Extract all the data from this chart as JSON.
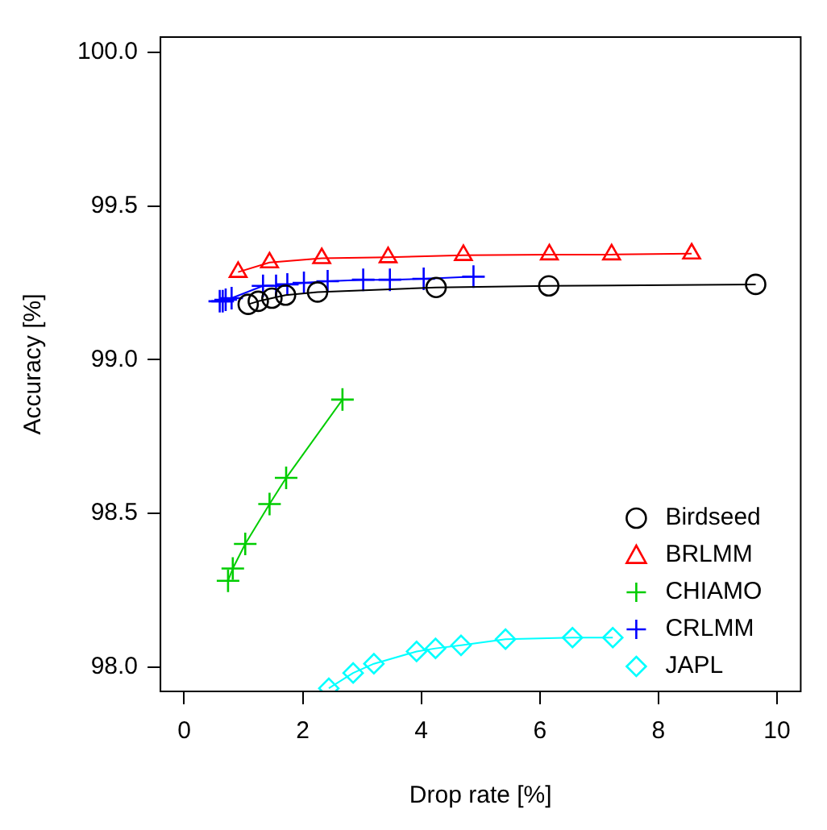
{
  "chart_data": {
    "type": "line",
    "xlabel": "Drop rate [%]",
    "ylabel": "Accuracy [%]",
    "xlim": [
      -0.4,
      10.4
    ],
    "xticks": [
      0,
      2,
      4,
      6,
      8,
      10
    ],
    "ylim": [
      97.92,
      100.05
    ],
    "yticks": [
      {
        "value": 98,
        "label": "98.0"
      },
      {
        "value": 98.5,
        "label": "98.5"
      },
      {
        "value": 99,
        "label": "99.0"
      },
      {
        "value": 99.5,
        "label": "99.5"
      },
      {
        "value": 100,
        "label": "100.0"
      }
    ],
    "grid": false,
    "legend": "bottom right",
    "series": [
      {
        "name": "Birdseed",
        "color": "#000000",
        "marker": "circle",
        "x": [
          1.08,
          1.25,
          1.48,
          1.71,
          2.25,
          4.25,
          6.15,
          9.64
        ],
        "values": [
          99.18,
          99.19,
          99.2,
          99.21,
          99.22,
          99.235,
          99.24,
          99.245
        ]
      },
      {
        "name": "BRLMM",
        "color": "#ff0000",
        "marker": "triangle",
        "x": [
          0.91,
          1.44,
          2.32,
          3.44,
          4.71,
          6.16,
          7.21,
          8.56
        ],
        "values": [
          99.285,
          99.316,
          99.33,
          99.333,
          99.34,
          99.342,
          99.342,
          99.345
        ]
      },
      {
        "name": "CHIAMO",
        "color": "#00cd00",
        "marker": "cross",
        "x": [
          0.74,
          0.82,
          1.03,
          1.44,
          1.72,
          2.67
        ],
        "values": [
          98.28,
          98.32,
          98.4,
          98.53,
          98.615,
          98.87
        ]
      },
      {
        "name": "CRLMM",
        "color": "#0000ff",
        "marker": "cross",
        "x": [
          0.6,
          0.65,
          0.7,
          0.8,
          1.33,
          1.55,
          1.74,
          2.02,
          2.42,
          3.02,
          3.47,
          4.04,
          4.88
        ],
        "values": [
          99.19,
          99.19,
          99.195,
          99.2,
          99.24,
          99.24,
          99.245,
          99.25,
          99.255,
          99.26,
          99.26,
          99.263,
          99.27
        ]
      },
      {
        "name": "JAPL",
        "color": "#00ffff",
        "marker": "diamond",
        "x": [
          2.44,
          2.85,
          3.2,
          3.92,
          4.24,
          4.67,
          5.42,
          6.55,
          7.23
        ],
        "values": [
          97.93,
          97.98,
          98.01,
          98.05,
          98.06,
          98.07,
          98.09,
          98.095,
          98.095
        ]
      }
    ]
  }
}
